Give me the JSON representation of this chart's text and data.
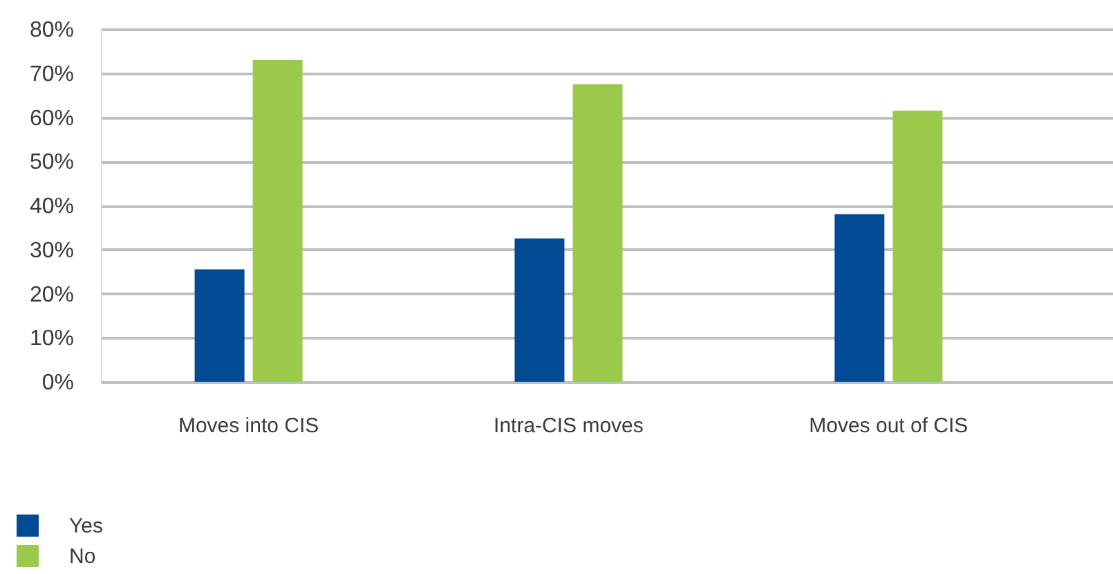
{
  "chart_data": {
    "type": "bar",
    "categories": [
      "Moves into CIS",
      "Intra-CIS moves",
      "Moves out of CIS"
    ],
    "series": [
      {
        "name": "Yes",
        "color": "#004b93",
        "values": [
          25.5,
          32.5,
          38
        ]
      },
      {
        "name": "No",
        "color": "#9bc94b",
        "values": [
          73,
          67.5,
          61.5
        ]
      }
    ],
    "ylim": [
      0,
      80
    ],
    "yticks": [
      {
        "value": 0,
        "label": "0%"
      },
      {
        "value": 10,
        "label": "10%"
      },
      {
        "value": 20,
        "label": "20%"
      },
      {
        "value": 30,
        "label": "30%"
      },
      {
        "value": 40,
        "label": "40%"
      },
      {
        "value": 50,
        "label": "50%"
      },
      {
        "value": 60,
        "label": "60%"
      },
      {
        "value": 70,
        "label": "70%"
      },
      {
        "value": 80,
        "label": "80%"
      }
    ],
    "grid": "y",
    "legend": "bottom left"
  }
}
